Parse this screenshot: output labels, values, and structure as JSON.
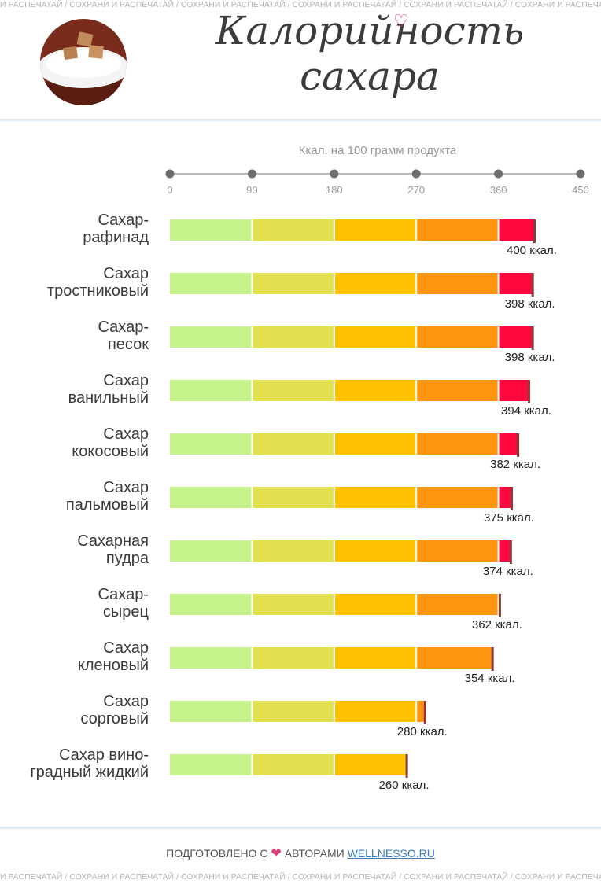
{
  "banner_text": "СОХРАНИ И РАСПЕЧАТАЙ",
  "title_line1": "Калорийность",
  "title_line2": "сахара",
  "footer": {
    "prefix": "ПОДГОТОВЛЕНО С",
    "middle": "АВТОРАМИ",
    "link": "WELLNESSO.RU"
  },
  "colors": {
    "segments": [
      "#c6f28c",
      "#e3e050",
      "#ffc200",
      "#ff9410",
      "#ff0840"
    ],
    "end_marker": "#8b3a3a",
    "rule": "#e2ebf1",
    "heart": "#e0407a"
  },
  "chart_data": {
    "type": "bar",
    "orientation": "horizontal",
    "xlabel": "Ккал. на 100 грамм продукта",
    "xlim": [
      0,
      450
    ],
    "xticks": [
      0,
      90,
      180,
      270,
      360,
      450
    ],
    "categories": [
      "Сахар-рафинад",
      "Сахар тростниковый",
      "Сахар-песок",
      "Сахар ванильный",
      "Сахар кокосовый",
      "Сахар пальмовый",
      "Сахарная пудра",
      "Сахар-сырец",
      "Сахар кленовый",
      "Сахар сорговый",
      "Сахар виноградный жидкий"
    ],
    "label_lines": [
      [
        "Сахар-",
        "рафинад"
      ],
      [
        "Сахар",
        "тростниковый"
      ],
      [
        "Сахар-",
        "песок"
      ],
      [
        "Сахар",
        "ванильный"
      ],
      [
        "Сахар",
        "кокосовый"
      ],
      [
        "Сахар",
        "пальмовый"
      ],
      [
        "Сахарная",
        "пудра"
      ],
      [
        "Сахар-",
        "сырец"
      ],
      [
        "Сахар",
        "кленовый"
      ],
      [
        "Сахар",
        "сорговый"
      ],
      [
        "Сахар вино-",
        "градный жидкий"
      ]
    ],
    "values": [
      400,
      398,
      398,
      394,
      382,
      375,
      374,
      362,
      354,
      280,
      260
    ],
    "value_labels": [
      "400 ккал.",
      "398 ккал.",
      "398 ккал.",
      "394 ккал.",
      "382 ккал.",
      "375 ккал.",
      "374 ккал.",
      "362 ккал.",
      "354 ккал.",
      "280 ккал.",
      "260 ккал."
    ],
    "unit": "ккал."
  }
}
